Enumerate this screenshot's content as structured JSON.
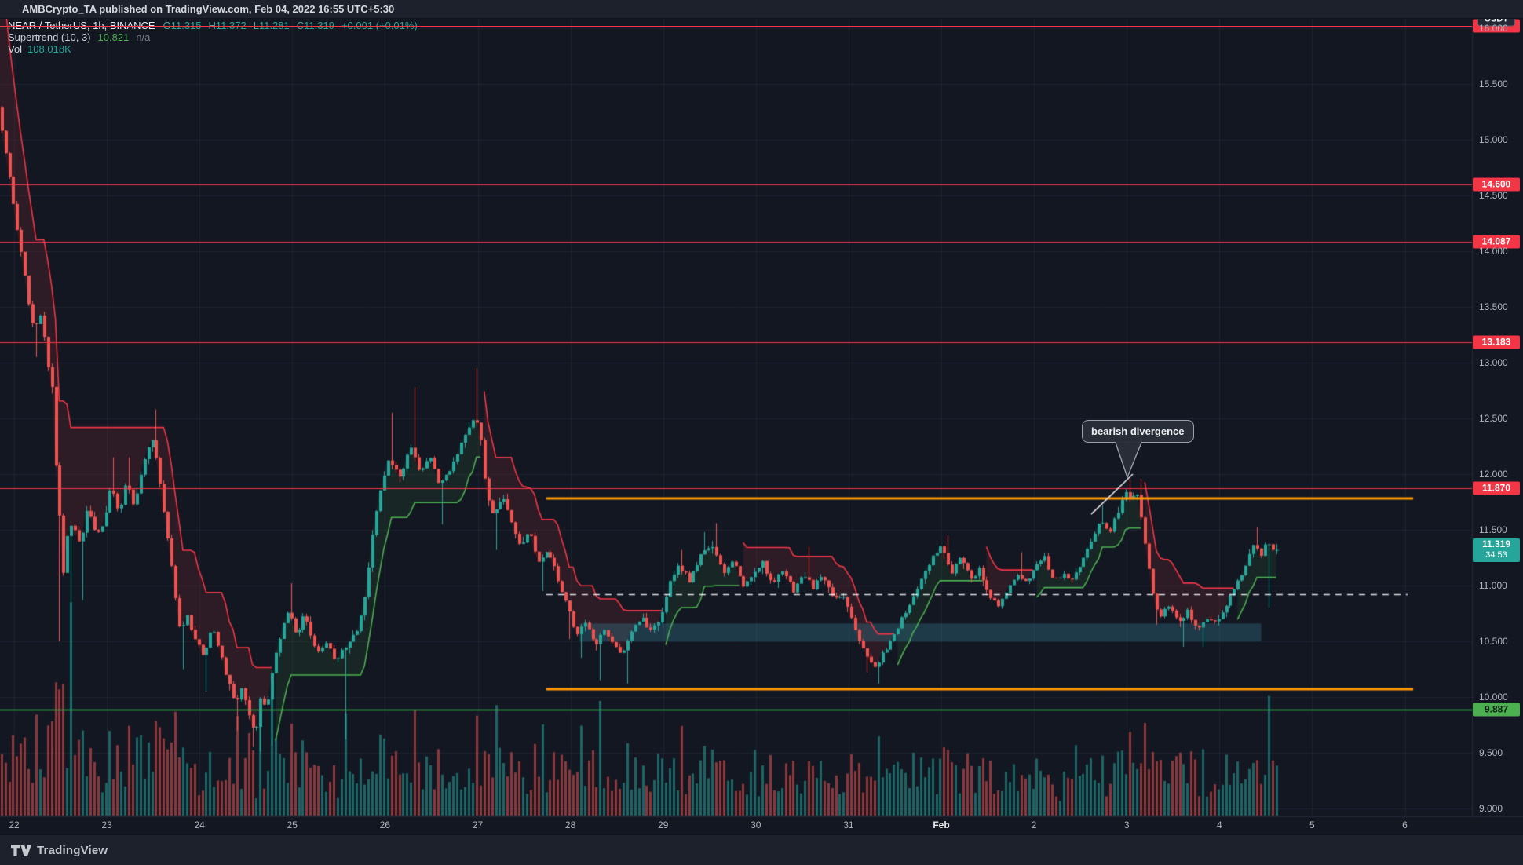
{
  "header": {
    "published_line": "AMBCrypto_TA published on TradingView.com, Feb 04, 2022 16:55 UTC+5:30"
  },
  "footer": {
    "brand": "TradingView"
  },
  "legend": {
    "symbol": "NEAR / TetherUS, 1h, BINANCE",
    "ohlc": [
      {
        "k": "O",
        "v": "11.315"
      },
      {
        "k": "H",
        "v": "11.372"
      },
      {
        "k": "L",
        "v": "11.281"
      },
      {
        "k": "C",
        "v": "11.319"
      }
    ],
    "change": "+0.001 (+0.01%)",
    "indicator": {
      "name": "Supertrend (10, 3)",
      "value": "10.821",
      "na": "n/a"
    },
    "volume": {
      "label": "Vol",
      "value": "108.018K"
    }
  },
  "price_axis": {
    "currency": "USDT",
    "ticks": [
      {
        "text": "16.000",
        "price": 16.0
      },
      {
        "text": "15.500",
        "price": 15.5
      },
      {
        "text": "15.000",
        "price": 15.0
      },
      {
        "text": "14.500",
        "price": 14.5
      },
      {
        "text": "14.000",
        "price": 14.0
      },
      {
        "text": "13.500",
        "price": 13.5
      },
      {
        "text": "13.000",
        "price": 13.0
      },
      {
        "text": "12.500",
        "price": 12.5
      },
      {
        "text": "12.000",
        "price": 12.0
      },
      {
        "text": "11.500",
        "price": 11.5
      },
      {
        "text": "11.000",
        "price": 11.0
      },
      {
        "text": "10.500",
        "price": 10.5
      },
      {
        "text": "10.000",
        "price": 10.0
      },
      {
        "text": "9.500",
        "price": 9.5
      },
      {
        "text": "9.000",
        "price": 9.0
      }
    ],
    "level_badges": [
      {
        "label": "",
        "price": 16.021,
        "bg": "#f23645",
        "cls": ""
      },
      {
        "label": "14.600",
        "price": 14.6,
        "bg": "#f23645",
        "cls": ""
      },
      {
        "label": "14.087",
        "price": 14.087,
        "bg": "#f23645",
        "cls": ""
      },
      {
        "label": "13.183",
        "price": 13.183,
        "bg": "#f23645",
        "cls": ""
      },
      {
        "label": "11.870",
        "price": 11.87,
        "bg": "#f23645",
        "cls": ""
      },
      {
        "label": "9.887",
        "price": 9.887,
        "bg": "#4caf50",
        "cls": "green"
      }
    ],
    "last_price": {
      "value": "11.319",
      "countdown": "34:53"
    }
  },
  "time_axis": {
    "labels": [
      {
        "text": "22",
        "d": 0
      },
      {
        "text": "23",
        "d": 1
      },
      {
        "text": "24",
        "d": 2
      },
      {
        "text": "25",
        "d": 3
      },
      {
        "text": "26",
        "d": 4
      },
      {
        "text": "27",
        "d": 5
      },
      {
        "text": "28",
        "d": 6
      },
      {
        "text": "29",
        "d": 7
      },
      {
        "text": "30",
        "d": 8
      },
      {
        "text": "31",
        "d": 9
      },
      {
        "text": "Feb",
        "d": 10,
        "major": true
      },
      {
        "text": "2",
        "d": 11
      },
      {
        "text": "3",
        "d": 12
      },
      {
        "text": "4",
        "d": 13
      },
      {
        "text": "5",
        "d": 14
      },
      {
        "text": "6",
        "d": 15
      }
    ]
  },
  "annotations": {
    "tooltip": {
      "text": "bearish divergence"
    }
  },
  "chart_data": {
    "type": "candlestick",
    "title": "NEAR / TetherUS, 1h, BINANCE",
    "interval_hours": 1,
    "legend_ohlc": {
      "open": 11.315,
      "high": 11.372,
      "low": 11.281,
      "close": 11.319,
      "change": 0.001,
      "change_pct": 0.01
    },
    "y_axis": {
      "visible_range": [
        8.95,
        16.05
      ],
      "tick_step": 0.5,
      "unit": "USDT"
    },
    "x_axis": {
      "start_label": "Jan 22",
      "end_label": "Feb 6",
      "days_visible": 15.7
    },
    "colors": {
      "bg": "#131722",
      "grid": "rgba(240,243,250,0.055)",
      "up": "#26a69a",
      "down": "#ef5350",
      "st_up": "#4caf50",
      "st_down": "#f23645",
      "st_up_fill": "rgba(76,175,80,0.10)",
      "st_down_fill": "rgba(242,54,69,0.12)",
      "level_red": "#f23645",
      "level_green": "#3fba50",
      "orange": "#ff9800",
      "dashed": "rgba(255,255,255,0.85)",
      "box": "rgba(56,131,154,0.33)",
      "vol_up": "rgba(38,166,154,0.55)",
      "vol_down": "rgba(239,83,80,0.55)"
    },
    "supertrend": {
      "period": 10,
      "multiplier": 3,
      "current_value": 10.821,
      "current_direction": "up"
    },
    "volume_current": "108.018K",
    "horizontal_lines": [
      {
        "price": 16.021,
        "color": "red"
      },
      {
        "price": 14.6,
        "color": "red"
      },
      {
        "price": 14.087,
        "color": "red"
      },
      {
        "price": 13.183,
        "color": "red"
      },
      {
        "price": 11.87,
        "color": "red"
      },
      {
        "price": 9.887,
        "color": "green"
      }
    ],
    "orange_lines": [
      {
        "price": 11.78,
        "from_day": 5.74,
        "to_day": 15.09
      },
      {
        "price": 10.07,
        "from_day": 5.74,
        "to_day": 15.09
      }
    ],
    "dashed_line": {
      "price": 10.92,
      "from_day": 5.74,
      "to_day": 15.03
    },
    "box": {
      "from_day": 6.1,
      "to_day": 13.45,
      "price_top": 10.66,
      "price_bottom": 10.5
    },
    "divergence_line": {
      "from": [
        11.617,
        11.64
      ],
      "to": [
        12.066,
        12.0
      ]
    },
    "price_path": [
      [
        -0.18,
        15.55,
        null,
        16.05
      ],
      [
        -0.1,
        15.1,
        null,
        null
      ],
      [
        -0.04,
        14.82,
        null,
        null
      ],
      [
        0.0,
        14.6,
        null,
        null
      ],
      [
        0.06,
        14.25,
        null,
        null
      ],
      [
        0.13,
        13.9,
        null,
        null
      ],
      [
        0.19,
        13.55,
        null,
        null
      ],
      [
        0.25,
        13.3,
        13.05,
        null
      ],
      [
        0.33,
        13.45,
        null,
        null
      ],
      [
        0.4,
        12.95,
        null,
        null
      ],
      [
        0.44,
        12.85,
        null,
        null
      ],
      [
        0.48,
        12.15,
        10.5,
        null
      ],
      [
        0.53,
        11.6,
        null,
        null
      ],
      [
        0.57,
        11.1,
        null,
        null
      ],
      [
        0.61,
        11.45,
        9.88,
        null
      ],
      [
        0.67,
        11.55,
        null,
        null
      ],
      [
        0.75,
        11.35,
        10.87,
        null
      ],
      [
        0.83,
        11.7,
        null,
        null
      ],
      [
        0.92,
        11.45,
        null,
        null
      ],
      [
        1.0,
        11.55,
        null,
        null
      ],
      [
        1.08,
        11.9,
        null,
        12.15
      ],
      [
        1.17,
        11.65,
        null,
        null
      ],
      [
        1.25,
        11.95,
        null,
        12.15
      ],
      [
        1.33,
        11.7,
        null,
        null
      ],
      [
        1.42,
        12.05,
        null,
        null
      ],
      [
        1.52,
        12.35,
        null,
        12.58
      ],
      [
        1.6,
        12.0,
        null,
        null
      ],
      [
        1.67,
        11.55,
        null,
        null
      ],
      [
        1.75,
        11.1,
        null,
        null
      ],
      [
        1.83,
        10.55,
        10.25,
        null
      ],
      [
        1.9,
        10.72,
        null,
        null
      ],
      [
        2.0,
        10.5,
        null,
        null
      ],
      [
        2.08,
        10.35,
        10.05,
        null
      ],
      [
        2.17,
        10.62,
        null,
        null
      ],
      [
        2.25,
        10.45,
        null,
        null
      ],
      [
        2.33,
        10.18,
        null,
        null
      ],
      [
        2.42,
        9.95,
        9.7,
        null
      ],
      [
        2.5,
        10.1,
        null,
        null
      ],
      [
        2.58,
        9.78,
        9.55,
        null
      ],
      [
        2.64,
        9.66,
        9.51,
        null
      ],
      [
        2.7,
        10.02,
        null,
        null
      ],
      [
        2.76,
        9.88,
        9.56,
        null
      ],
      [
        2.84,
        10.3,
        null,
        null
      ],
      [
        2.92,
        10.58,
        null,
        null
      ],
      [
        3.0,
        10.78,
        null,
        11.02
      ],
      [
        3.08,
        10.55,
        null,
        null
      ],
      [
        3.17,
        10.75,
        null,
        null
      ],
      [
        3.25,
        10.5,
        null,
        null
      ],
      [
        3.33,
        10.42,
        null,
        null
      ],
      [
        3.42,
        10.52,
        null,
        null
      ],
      [
        3.5,
        10.28,
        null,
        null
      ],
      [
        3.57,
        10.42,
        9.62,
        null
      ],
      [
        3.65,
        10.5,
        null,
        null
      ],
      [
        3.75,
        10.62,
        null,
        null
      ],
      [
        3.83,
        10.95,
        null,
        null
      ],
      [
        3.92,
        11.55,
        null,
        null
      ],
      [
        4.0,
        11.9,
        null,
        null
      ],
      [
        4.08,
        12.15,
        null,
        12.55
      ],
      [
        4.2,
        11.95,
        null,
        null
      ],
      [
        4.31,
        12.25,
        null,
        12.78
      ],
      [
        4.42,
        12.0,
        null,
        null
      ],
      [
        4.52,
        12.18,
        null,
        null
      ],
      [
        4.62,
        11.9,
        11.55,
        null
      ],
      [
        4.75,
        12.05,
        null,
        null
      ],
      [
        4.88,
        12.3,
        null,
        null
      ],
      [
        5.0,
        12.52,
        null,
        12.95
      ],
      [
        5.06,
        12.38,
        null,
        null
      ],
      [
        5.12,
        11.9,
        null,
        null
      ],
      [
        5.2,
        11.62,
        11.32,
        null
      ],
      [
        5.3,
        11.8,
        null,
        null
      ],
      [
        5.4,
        11.58,
        null,
        null
      ],
      [
        5.5,
        11.35,
        null,
        null
      ],
      [
        5.6,
        11.48,
        null,
        null
      ],
      [
        5.7,
        11.18,
        10.95,
        null
      ],
      [
        5.8,
        11.32,
        null,
        null
      ],
      [
        5.9,
        11.05,
        null,
        null
      ],
      [
        6.0,
        10.85,
        10.52,
        null
      ],
      [
        6.1,
        10.55,
        10.35,
        null
      ],
      [
        6.2,
        10.68,
        null,
        null
      ],
      [
        6.3,
        10.45,
        10.15,
        null
      ],
      [
        6.4,
        10.62,
        null,
        null
      ],
      [
        6.5,
        10.48,
        null,
        null
      ],
      [
        6.6,
        10.38,
        10.12,
        null
      ],
      [
        6.7,
        10.6,
        null,
        null
      ],
      [
        6.8,
        10.72,
        null,
        null
      ],
      [
        6.9,
        10.58,
        null,
        null
      ],
      [
        7.0,
        10.68,
        null,
        null
      ],
      [
        7.1,
        11.0,
        null,
        null
      ],
      [
        7.2,
        11.18,
        null,
        11.32
      ],
      [
        7.32,
        11.05,
        null,
        null
      ],
      [
        7.45,
        11.28,
        null,
        11.48
      ],
      [
        7.58,
        11.35,
        null,
        11.56
      ],
      [
        7.7,
        11.12,
        null,
        null
      ],
      [
        7.8,
        11.22,
        null,
        null
      ],
      [
        7.9,
        10.98,
        null,
        null
      ],
      [
        8.0,
        11.08,
        null,
        null
      ],
      [
        8.1,
        11.22,
        null,
        null
      ],
      [
        8.22,
        11.0,
        null,
        null
      ],
      [
        8.33,
        11.15,
        null,
        null
      ],
      [
        8.45,
        10.95,
        null,
        null
      ],
      [
        8.55,
        11.12,
        null,
        11.35
      ],
      [
        8.65,
        10.98,
        null,
        null
      ],
      [
        8.75,
        11.1,
        null,
        null
      ],
      [
        8.85,
        10.92,
        null,
        null
      ],
      [
        9.0,
        10.88,
        null,
        null
      ],
      [
        9.1,
        10.62,
        null,
        null
      ],
      [
        9.2,
        10.42,
        10.22,
        null
      ],
      [
        9.32,
        10.28,
        10.12,
        null
      ],
      [
        9.42,
        10.4,
        null,
        null
      ],
      [
        9.52,
        10.55,
        null,
        null
      ],
      [
        9.62,
        10.72,
        null,
        null
      ],
      [
        9.72,
        10.88,
        null,
        null
      ],
      [
        9.82,
        11.05,
        null,
        null
      ],
      [
        9.95,
        11.28,
        null,
        null
      ],
      [
        10.05,
        11.35,
        null,
        11.45
      ],
      [
        10.15,
        11.12,
        null,
        null
      ],
      [
        10.25,
        11.28,
        null,
        null
      ],
      [
        10.35,
        11.05,
        null,
        null
      ],
      [
        10.45,
        11.15,
        null,
        null
      ],
      [
        10.55,
        10.92,
        null,
        null
      ],
      [
        10.65,
        10.8,
        null,
        null
      ],
      [
        10.75,
        10.95,
        null,
        null
      ],
      [
        10.85,
        11.1,
        null,
        11.3
      ],
      [
        10.95,
        11.02,
        null,
        null
      ],
      [
        11.05,
        11.15,
        null,
        null
      ],
      [
        11.15,
        11.28,
        null,
        null
      ],
      [
        11.25,
        11.02,
        null,
        null
      ],
      [
        11.35,
        11.12,
        null,
        null
      ],
      [
        11.45,
        11.05,
        null,
        null
      ],
      [
        11.55,
        11.22,
        null,
        null
      ],
      [
        11.65,
        11.38,
        null,
        null
      ],
      [
        11.75,
        11.58,
        null,
        11.72
      ],
      [
        11.85,
        11.48,
        null,
        null
      ],
      [
        11.95,
        11.68,
        null,
        null
      ],
      [
        12.02,
        11.86,
        null,
        11.95
      ],
      [
        12.08,
        11.74,
        null,
        null
      ],
      [
        12.14,
        11.88,
        null,
        11.96
      ],
      [
        12.2,
        11.58,
        null,
        null
      ],
      [
        12.27,
        11.18,
        null,
        null
      ],
      [
        12.33,
        10.85,
        10.65,
        null
      ],
      [
        12.4,
        10.72,
        null,
        null
      ],
      [
        12.5,
        10.85,
        null,
        null
      ],
      [
        12.6,
        10.65,
        10.45,
        null
      ],
      [
        12.7,
        10.78,
        null,
        null
      ],
      [
        12.8,
        10.58,
        10.45,
        null
      ],
      [
        12.9,
        10.72,
        null,
        null
      ],
      [
        13.0,
        10.68,
        null,
        null
      ],
      [
        13.1,
        10.82,
        null,
        null
      ],
      [
        13.2,
        10.98,
        null,
        null
      ],
      [
        13.3,
        11.15,
        null,
        null
      ],
      [
        13.42,
        11.4,
        null,
        11.52
      ],
      [
        13.48,
        11.24,
        null,
        null
      ],
      [
        13.54,
        11.42,
        10.8,
        null
      ],
      [
        13.63,
        11.319,
        null,
        null
      ]
    ]
  }
}
